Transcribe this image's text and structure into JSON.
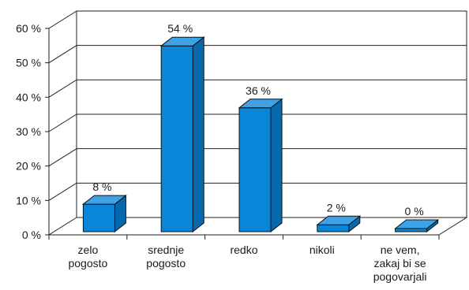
{
  "chart_data": {
    "type": "bar",
    "style": "3d-column",
    "categories": [
      [
        "zelo",
        "pogosto"
      ],
      [
        "srednje",
        "pogosto"
      ],
      [
        "redko"
      ],
      [
        "nikoli"
      ],
      [
        "ne vem,",
        "zakaj bi se",
        "pogovarjali"
      ]
    ],
    "values": [
      8,
      54,
      36,
      2,
      0
    ],
    "data_labels": [
      "8 %",
      "54 %",
      "36 %",
      "2 %",
      "0 %"
    ],
    "y_ticks": [
      "0 %",
      "10 %",
      "20 %",
      "30 %",
      "40 %",
      "50 %",
      "60 %"
    ],
    "ylim": [
      0,
      60
    ],
    "title": "",
    "xlabel": "",
    "ylabel": "",
    "grid": true,
    "legend": "none",
    "bar_color": "#0a86d8",
    "bar_side_color": "#0668ad",
    "bar_top_color": "#3ea3e6"
  }
}
